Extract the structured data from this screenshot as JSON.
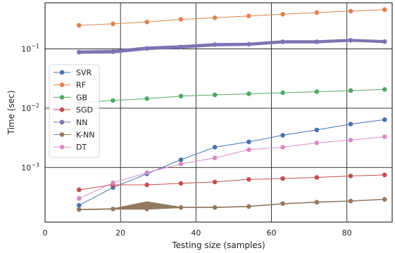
{
  "chart_data": {
    "type": "line",
    "title": "",
    "xlabel": "Testing size (samples)",
    "ylabel": "Time (sec)",
    "xlim": [
      0,
      92
    ],
    "ylim": [
      0.00012,
      0.6
    ],
    "yscale": "log",
    "grid": true,
    "legend_position": "center-left",
    "x_ticks": [
      0,
      20,
      40,
      60,
      80
    ],
    "y_ticks": [
      {
        "value": 0.001,
        "base": "10",
        "exp": "−3"
      },
      {
        "value": 0.01,
        "base": "10",
        "exp": "−2"
      },
      {
        "value": 0.1,
        "base": "10",
        "exp": "−1"
      }
    ],
    "x": [
      9,
      18,
      27,
      36,
      45,
      54,
      63,
      72,
      81,
      90
    ],
    "series": [
      {
        "name": "SVR",
        "color": "#4c72b0",
        "values": [
          0.00023,
          0.00046,
          0.00078,
          0.00135,
          0.0022,
          0.0027,
          0.0035,
          0.0043,
          0.0054,
          0.0064
        ]
      },
      {
        "name": "RF",
        "color": "#dd8452",
        "values": [
          0.25,
          0.265,
          0.285,
          0.315,
          0.335,
          0.36,
          0.385,
          0.41,
          0.435,
          0.46
        ]
      },
      {
        "name": "GB",
        "color": "#55a868",
        "values": [
          0.0125,
          0.0135,
          0.0145,
          0.016,
          0.0168,
          0.0175,
          0.0182,
          0.019,
          0.0198,
          0.0207
        ]
      },
      {
        "name": "SGD",
        "color": "#c44e52",
        "values": [
          0.00042,
          0.00051,
          0.00051,
          0.00054,
          0.00057,
          0.00063,
          0.00065,
          0.00068,
          0.00072,
          0.00075
        ]
      },
      {
        "name": "NN",
        "color": "#8172b3",
        "values": [
          0.088,
          0.09,
          0.102,
          0.108,
          0.118,
          0.12,
          0.132,
          0.132,
          0.14,
          0.133
        ]
      },
      {
        "name": "K-NN",
        "color": "#937860",
        "values": [
          0.000195,
          0.0002,
          0.0002,
          0.000212,
          0.000212,
          0.00022,
          0.000245,
          0.00026,
          0.000272,
          0.00029
        ]
      },
      {
        "name": "DT",
        "color": "#da8bc3",
        "values": [
          0.0003,
          0.00055,
          0.00082,
          0.00115,
          0.00145,
          0.002,
          0.0022,
          0.0026,
          0.0029,
          0.0033
        ]
      }
    ],
    "bands": [
      {
        "series": "NN",
        "lower": [
          0.084,
          0.085,
          0.097,
          0.103,
          0.112,
          0.114,
          0.126,
          0.126,
          0.134,
          0.127
        ],
        "upper": [
          0.093,
          0.095,
          0.108,
          0.114,
          0.124,
          0.126,
          0.138,
          0.138,
          0.146,
          0.139
        ]
      },
      {
        "series": "K-NN",
        "lower": [
          0.000193,
          0.000198,
          0.000198,
          0.00021,
          0.00021,
          0.000218,
          0.000243,
          0.000258,
          0.00027,
          0.000288
        ],
        "upper": [
          0.000197,
          0.000202,
          0.000265,
          0.000214,
          0.000214,
          0.000222,
          0.000247,
          0.000262,
          0.000274,
          0.000292
        ]
      }
    ]
  }
}
